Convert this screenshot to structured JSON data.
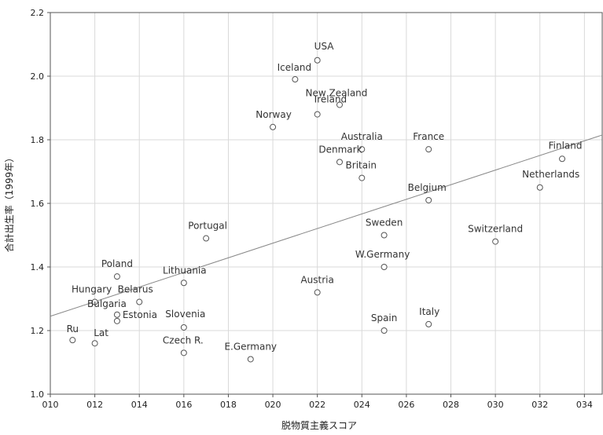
{
  "chart_data": {
    "type": "scatter",
    "xlabel": "脱物質主義スコア",
    "ylabel": "合計出生率（1999年）",
    "xlim": [
      10,
      34.8
    ],
    "ylim": [
      1.0,
      2.2
    ],
    "x_ticks": [
      {
        "value": 10,
        "label": "010"
      },
      {
        "value": 12,
        "label": "012"
      },
      {
        "value": 14,
        "label": "014"
      },
      {
        "value": 16,
        "label": "016"
      },
      {
        "value": 18,
        "label": "018"
      },
      {
        "value": 20,
        "label": "020"
      },
      {
        "value": 22,
        "label": "022"
      },
      {
        "value": 24,
        "label": "024"
      },
      {
        "value": 26,
        "label": "026"
      },
      {
        "value": 28,
        "label": "028"
      },
      {
        "value": 30,
        "label": "030"
      },
      {
        "value": 32,
        "label": "032"
      },
      {
        "value": 34,
        "label": "034"
      }
    ],
    "y_ticks": [
      {
        "value": 1.0,
        "label": "1.0"
      },
      {
        "value": 1.2,
        "label": "1.2"
      },
      {
        "value": 1.4,
        "label": "1.4"
      },
      {
        "value": 1.6,
        "label": "1.6"
      },
      {
        "value": 1.8,
        "label": "1.8"
      },
      {
        "value": 2.0,
        "label": "2.0"
      },
      {
        "value": 2.2,
        "label": "2.2"
      }
    ],
    "grid": true,
    "trendline": {
      "x": [
        10,
        34.8
      ],
      "y": [
        1.245,
        1.815
      ]
    },
    "points": [
      {
        "label": "USA",
        "x": 22,
        "y": 2.05,
        "label_dx": -4,
        "label_dy": -14,
        "anchor": "start"
      },
      {
        "label": "Iceland",
        "x": 21,
        "y": 1.99,
        "label_dx": -1,
        "label_dy": -11,
        "anchor": "middle"
      },
      {
        "label": "New Zealand",
        "x": 23,
        "y": 1.91,
        "label_dx": -4,
        "label_dy": -11,
        "anchor": "middle"
      },
      {
        "label": "Ireland",
        "x": 22,
        "y": 1.88,
        "label_dx": -4,
        "label_dy": -15,
        "anchor": "start"
      },
      {
        "label": "Norway",
        "x": 20,
        "y": 1.84,
        "label_dx": 1,
        "label_dy": -12,
        "anchor": "middle"
      },
      {
        "label": "Australia",
        "x": 24,
        "y": 1.77,
        "label_dx": 0,
        "label_dy": -12,
        "anchor": "middle"
      },
      {
        "label": "France",
        "x": 27,
        "y": 1.77,
        "label_dx": 0,
        "label_dy": -12,
        "anchor": "middle"
      },
      {
        "label": "Denmark",
        "x": 23,
        "y": 1.73,
        "label_dx": 1,
        "label_dy": -12,
        "anchor": "middle"
      },
      {
        "label": "Britain",
        "x": 24,
        "y": 1.68,
        "label_dx": -1,
        "label_dy": -12,
        "anchor": "middle"
      },
      {
        "label": "Finland",
        "x": 33,
        "y": 1.74,
        "label_dx": 4,
        "label_dy": -13,
        "anchor": "middle"
      },
      {
        "label": "Netherlands",
        "x": 32,
        "y": 1.65,
        "label_dx": 14,
        "label_dy": -13,
        "anchor": "middle"
      },
      {
        "label": "Belgium",
        "x": 27,
        "y": 1.61,
        "label_dx": -2,
        "label_dy": -12,
        "anchor": "middle"
      },
      {
        "label": "Portugal",
        "x": 17,
        "y": 1.49,
        "label_dx": 2,
        "label_dy": -12,
        "anchor": "middle"
      },
      {
        "label": "Sweden",
        "x": 25,
        "y": 1.5,
        "label_dx": 0,
        "label_dy": -12,
        "anchor": "middle"
      },
      {
        "label": "Switzerland",
        "x": 30,
        "y": 1.48,
        "label_dx": 0,
        "label_dy": -12,
        "anchor": "middle"
      },
      {
        "label": "W.Germany",
        "x": 25,
        "y": 1.4,
        "label_dx": -2,
        "label_dy": -12,
        "anchor": "middle"
      },
      {
        "label": "Poland",
        "x": 13,
        "y": 1.37,
        "label_dx": 0,
        "label_dy": -12,
        "anchor": "middle"
      },
      {
        "label": "Lithuania",
        "x": 16,
        "y": 1.35,
        "label_dx": 1,
        "label_dy": -12,
        "anchor": "middle"
      },
      {
        "label": "Austria",
        "x": 22,
        "y": 1.32,
        "label_dx": 0,
        "label_dy": -12,
        "anchor": "middle"
      },
      {
        "label": "Hungary",
        "x": 12,
        "y": 1.29,
        "label_dx": -4,
        "label_dy": -12,
        "anchor": "middle"
      },
      {
        "label": "Belarus",
        "x": 14,
        "y": 1.29,
        "label_dx": -5,
        "label_dy": -12,
        "anchor": "middle"
      },
      {
        "label": "Bulgaria",
        "x": 13,
        "y": 1.25,
        "label_dx": -13,
        "label_dy": -10,
        "anchor": "middle"
      },
      {
        "label": "Estonia",
        "x": 13,
        "y": 1.23,
        "label_dx": 29,
        "label_dy": -4,
        "anchor": "middle"
      },
      {
        "label": "Slovenia",
        "x": 16,
        "y": 1.21,
        "label_dx": 2,
        "label_dy": -13,
        "anchor": "middle"
      },
      {
        "label": "Italy",
        "x": 27,
        "y": 1.22,
        "label_dx": 1,
        "label_dy": -12,
        "anchor": "middle"
      },
      {
        "label": "Spain",
        "x": 25,
        "y": 1.2,
        "label_dx": 0,
        "label_dy": -12,
        "anchor": "middle"
      },
      {
        "label": "Ru",
        "x": 11,
        "y": 1.17,
        "label_dx": 0,
        "label_dy": -10,
        "anchor": "middle"
      },
      {
        "label": "Lat",
        "x": 12,
        "y": 1.16,
        "label_dx": 8,
        "label_dy": -9,
        "anchor": "middle"
      },
      {
        "label": "Czech R.",
        "x": 16,
        "y": 1.13,
        "label_dx": -1,
        "label_dy": -12,
        "anchor": "middle"
      },
      {
        "label": "E.Germany",
        "x": 19,
        "y": 1.11,
        "label_dx": 0,
        "label_dy": -12,
        "anchor": "middle"
      }
    ]
  }
}
